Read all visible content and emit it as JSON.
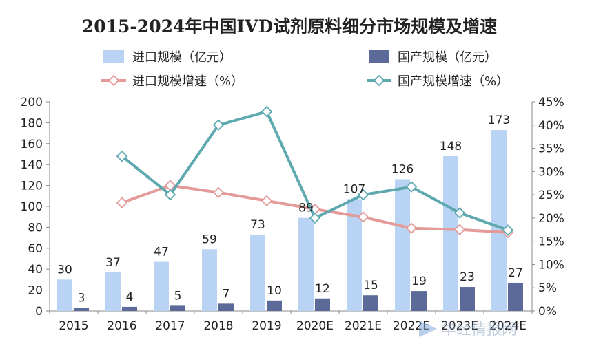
{
  "chart_data": {
    "type": "bar",
    "title": "2015-2024年中国IVD试剂原料细分市场规模及增速",
    "categories": [
      "2015",
      "2016",
      "2017",
      "2018",
      "2019",
      "2020E",
      "2021E",
      "2022E",
      "2023E",
      "2024E"
    ],
    "series": [
      {
        "name": "进口规模（亿元）",
        "type": "bar",
        "axis": "left",
        "color": "#b8d3f3",
        "values": [
          30,
          37,
          47,
          59,
          73,
          89,
          107,
          126,
          148,
          173
        ]
      },
      {
        "name": "国产规模（亿元）",
        "type": "bar",
        "axis": "left",
        "color": "#5b6a98",
        "values": [
          3,
          4,
          5,
          7,
          10,
          12,
          15,
          19,
          23,
          27
        ]
      },
      {
        "name": "进口规模增速（%）",
        "type": "line",
        "axis": "right",
        "color": "#e39a98",
        "values": [
          null,
          23.3,
          27.0,
          25.5,
          23.7,
          21.9,
          20.2,
          17.8,
          17.5,
          16.9
        ]
      },
      {
        "name": "国产规模增速（%）",
        "type": "line",
        "axis": "right",
        "color": "#5ea8b0",
        "values": [
          null,
          33.3,
          25.0,
          40.0,
          42.9,
          20.0,
          25.0,
          26.7,
          21.1,
          17.4
        ]
      }
    ],
    "ylim_left": [
      0,
      200
    ],
    "yticks_left": [
      "0",
      "20",
      "40",
      "60",
      "80",
      "100",
      "120",
      "140",
      "160",
      "180",
      "200"
    ],
    "ylim_right": [
      0,
      45
    ],
    "yticks_right": [
      "0%",
      "5%",
      "10%",
      "15%",
      "20%",
      "25%",
      "30%",
      "35%",
      "40%",
      "45%"
    ],
    "grid": false,
    "legend_position": "top"
  },
  "watermark": "华经情报网"
}
